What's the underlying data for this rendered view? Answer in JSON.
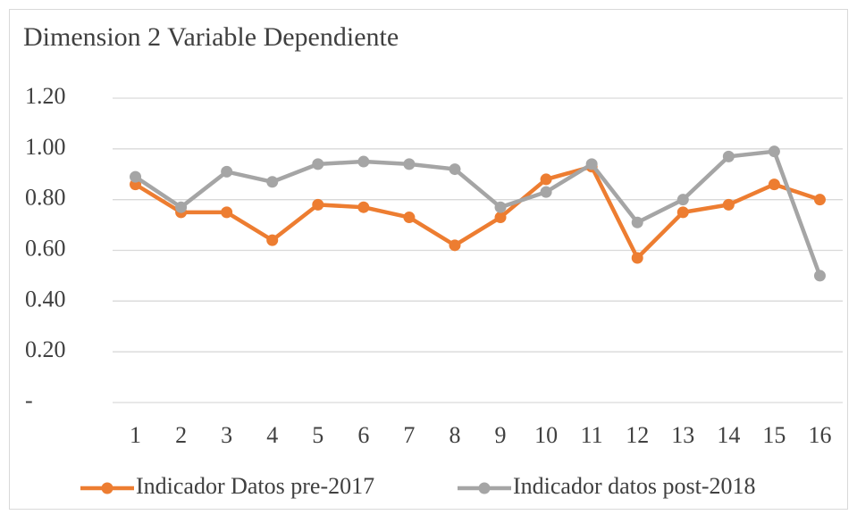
{
  "chart_data": {
    "type": "line",
    "title": "Dimension 2 Variable Dependiente",
    "categories": [
      "1",
      "2",
      "3",
      "4",
      "5",
      "6",
      "7",
      "8",
      "9",
      "10",
      "11",
      "12",
      "13",
      "14",
      "15",
      "16"
    ],
    "series": [
      {
        "name": "Indicador Datos pre-2017",
        "color": "#ed7d31",
        "values": [
          0.86,
          0.75,
          0.75,
          0.64,
          0.78,
          0.77,
          0.73,
          0.62,
          0.73,
          0.88,
          0.93,
          0.57,
          0.75,
          0.78,
          0.86,
          0.8
        ]
      },
      {
        "name": "Indicador datos post-2018",
        "color": "#a5a5a5",
        "values": [
          0.89,
          0.77,
          0.91,
          0.87,
          0.94,
          0.95,
          0.94,
          0.92,
          0.77,
          0.83,
          0.94,
          0.71,
          0.8,
          0.97,
          0.99,
          0.5
        ]
      }
    ],
    "ylim": [
      0,
      1.2
    ],
    "yticks": [
      {
        "value": 0,
        "label": "-"
      },
      {
        "value": 0.2,
        "label": "0.20"
      },
      {
        "value": 0.4,
        "label": "0.40"
      },
      {
        "value": 0.6,
        "label": "0.60"
      },
      {
        "value": 0.8,
        "label": "0.80"
      },
      {
        "value": 1.0,
        "label": "1.00"
      },
      {
        "value": 1.2,
        "label": "1.20"
      }
    ],
    "grid": true,
    "legend": "bottom"
  }
}
